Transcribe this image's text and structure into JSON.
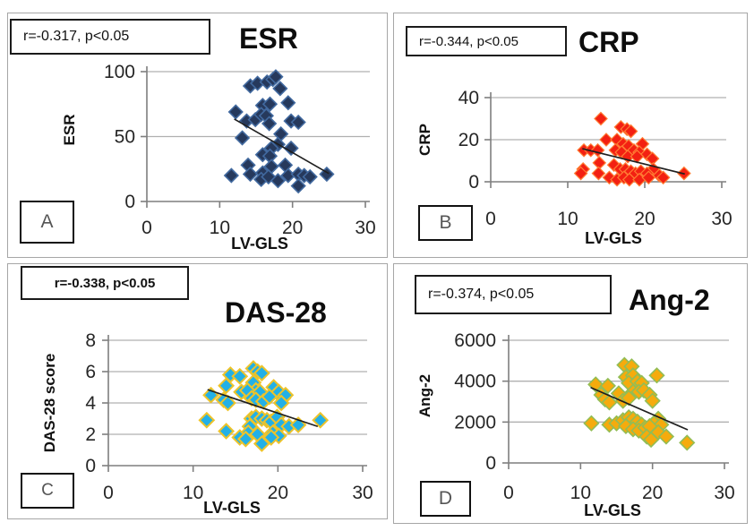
{
  "figure": {
    "xlabel_shared": "LV-GLS"
  },
  "chart_data": [
    {
      "type": "scatter",
      "panel_label": "A",
      "title": "ESR",
      "annotation": "r=-0.317, p<0.05",
      "xlabel": "LV-GLS",
      "ylabel": "ESR",
      "xlim": [
        0,
        30
      ],
      "ylim": [
        0,
        100
      ],
      "xticks": [
        0,
        10,
        20,
        30
      ],
      "yticks": [
        0,
        50,
        100
      ],
      "grid": "horizontal",
      "legend": "none",
      "marker": "diamond",
      "marker_fill": "#26395c",
      "marker_stroke": "#41699f",
      "trend_color": "#1f1f1f",
      "trend_line": {
        "x1": 12.0,
        "y1": 63.5,
        "x2": 25.0,
        "y2": 21.5
      },
      "points": [
        [
          14.2,
          89
        ],
        [
          15.2,
          91
        ],
        [
          16.5,
          92
        ],
        [
          17.3,
          94
        ],
        [
          17.7,
          96
        ],
        [
          18.3,
          87
        ],
        [
          12.2,
          69
        ],
        [
          15.9,
          74
        ],
        [
          16.9,
          75
        ],
        [
          19.4,
          76
        ],
        [
          13.7,
          62
        ],
        [
          14.9,
          63
        ],
        [
          15.7,
          67
        ],
        [
          16.4,
          66
        ],
        [
          16.8,
          60
        ],
        [
          19.8,
          62
        ],
        [
          20.8,
          61
        ],
        [
          13.1,
          49
        ],
        [
          18.4,
          52
        ],
        [
          18.0,
          44
        ],
        [
          17.1,
          41
        ],
        [
          19.8,
          41
        ],
        [
          15.9,
          36
        ],
        [
          16.9,
          35
        ],
        [
          13.9,
          28
        ],
        [
          17.1,
          27
        ],
        [
          19.0,
          28
        ],
        [
          11.6,
          20
        ],
        [
          14.2,
          21
        ],
        [
          15.9,
          22
        ],
        [
          15.7,
          17
        ],
        [
          16.7,
          19
        ],
        [
          18.0,
          16
        ],
        [
          19.4,
          20
        ],
        [
          20.8,
          21
        ],
        [
          21.6,
          20
        ],
        [
          22.4,
          19
        ],
        [
          20.8,
          12
        ],
        [
          24.7,
          21
        ]
      ]
    },
    {
      "type": "scatter",
      "panel_label": "B",
      "title": "CRP",
      "annotation": "r=-0.344, p<0.05",
      "xlabel": "LV-GLS",
      "ylabel": "CRP",
      "xlim": [
        0,
        30
      ],
      "ylim": [
        0,
        40
      ],
      "xticks": [
        0,
        10,
        20,
        30
      ],
      "yticks": [
        0,
        20,
        40
      ],
      "grid": "horizontal",
      "legend": "none",
      "marker": "diamond",
      "marker_fill": "#f32012",
      "marker_stroke": "#ff7c33",
      "trend_color": "#1f1f1f",
      "trend_line": {
        "x1": 11.9,
        "y1": 15.7,
        "x2": 25.2,
        "y2": 3.7
      },
      "points": [
        [
          14.3,
          30
        ],
        [
          16.9,
          26
        ],
        [
          17.7,
          25
        ],
        [
          18.2,
          24
        ],
        [
          15.0,
          20
        ],
        [
          16.4,
          20
        ],
        [
          17.2,
          18
        ],
        [
          17.9,
          17
        ],
        [
          19.7,
          18
        ],
        [
          12.1,
          15
        ],
        [
          13.0,
          15
        ],
        [
          13.9,
          15
        ],
        [
          16.2,
          15
        ],
        [
          17.0,
          14
        ],
        [
          18.6,
          15
        ],
        [
          19.3,
          14
        ],
        [
          20.3,
          13
        ],
        [
          17.8,
          12
        ],
        [
          19.0,
          12
        ],
        [
          21.0,
          11
        ],
        [
          14.1,
          9
        ],
        [
          16.0,
          8
        ],
        [
          12.0,
          6
        ],
        [
          16.8,
          6
        ],
        [
          17.5,
          6
        ],
        [
          21.1,
          6
        ],
        [
          11.7,
          4
        ],
        [
          14.0,
          4
        ],
        [
          18.2,
          5
        ],
        [
          18.8,
          4
        ],
        [
          19.5,
          5
        ],
        [
          20.3,
          4
        ],
        [
          21.9,
          3
        ],
        [
          25.1,
          4
        ],
        [
          15.4,
          2
        ],
        [
          16.4,
          1
        ],
        [
          17.3,
          2
        ],
        [
          18.0,
          1
        ],
        [
          19.3,
          1
        ],
        [
          20.5,
          2
        ],
        [
          22.4,
          2
        ]
      ]
    },
    {
      "type": "scatter",
      "panel_label": "C",
      "title": "DAS-28",
      "annotation": "r=-0.338, p<0.05",
      "xlabel": "LV-GLS",
      "ylabel": "DAS-28 score",
      "xlim": [
        0,
        30
      ],
      "ylim": [
        0,
        8
      ],
      "xticks": [
        0,
        10,
        20,
        30
      ],
      "yticks": [
        0,
        2,
        4,
        6,
        8
      ],
      "grid": "horizontal",
      "legend": "none",
      "marker": "diamond",
      "marker_fill": "#23b0e6",
      "marker_stroke": "#edc32a",
      "trend_color": "#1f1f1f",
      "trend_line": {
        "x1": 11.7,
        "y1": 4.85,
        "x2": 24.7,
        "y2": 2.5
      },
      "points": [
        [
          17.1,
          6.2
        ],
        [
          14.4,
          5.8
        ],
        [
          15.5,
          5.7
        ],
        [
          17.6,
          6.0
        ],
        [
          18.1,
          5.9
        ],
        [
          13.9,
          5.1
        ],
        [
          17.1,
          5.3
        ],
        [
          17.4,
          4.8
        ],
        [
          15.7,
          4.7
        ],
        [
          16.4,
          4.8
        ],
        [
          17.9,
          4.7
        ],
        [
          19.5,
          5.0
        ],
        [
          20.1,
          4.7
        ],
        [
          12.1,
          4.5
        ],
        [
          13.6,
          4.2
        ],
        [
          14.1,
          4.0
        ],
        [
          16.9,
          4.3
        ],
        [
          17.4,
          4.2
        ],
        [
          18.3,
          4.1
        ],
        [
          19.0,
          4.4
        ],
        [
          20.6,
          4.3
        ],
        [
          20.9,
          4.5
        ],
        [
          20.4,
          4.0
        ],
        [
          16.9,
          3.0
        ],
        [
          17.4,
          3.1
        ],
        [
          18.1,
          3.0
        ],
        [
          18.7,
          2.9
        ],
        [
          19.2,
          2.8
        ],
        [
          19.9,
          3.1
        ],
        [
          11.6,
          2.9
        ],
        [
          16.7,
          2.5
        ],
        [
          20.4,
          2.6
        ],
        [
          21.3,
          2.5
        ],
        [
          22.4,
          2.6
        ],
        [
          13.9,
          2.2
        ],
        [
          16.5,
          2.1
        ],
        [
          17.6,
          2.0
        ],
        [
          19.4,
          2.1
        ],
        [
          20.1,
          1.9
        ],
        [
          15.5,
          1.8
        ],
        [
          16.2,
          1.7
        ],
        [
          18.1,
          1.4
        ],
        [
          19.2,
          1.8
        ],
        [
          25.0,
          2.9
        ]
      ]
    },
    {
      "type": "scatter",
      "panel_label": "D",
      "title": "Ang-2",
      "annotation": "r=-0.374, p<0.05",
      "xlabel": "LV-GLS",
      "ylabel": "Ang-2",
      "xlim": [
        0,
        30
      ],
      "ylim": [
        0,
        6000
      ],
      "xticks": [
        0,
        10,
        20,
        30
      ],
      "yticks": [
        0,
        2000,
        4000,
        6000
      ],
      "grid": "horizontal",
      "legend": "none",
      "marker": "diamond",
      "marker_fill": "#f5ab0d",
      "marker_stroke": "#92bd55",
      "trend_color": "#1f1f1f",
      "trend_line": {
        "x1": 11.4,
        "y1": 3690,
        "x2": 24.9,
        "y2": 1620
      },
      "points": [
        [
          16.1,
          4790
        ],
        [
          17.1,
          4720
        ],
        [
          16.3,
          4200
        ],
        [
          17.3,
          4280
        ],
        [
          20.6,
          4280
        ],
        [
          16.7,
          3910
        ],
        [
          17.9,
          3990
        ],
        [
          18.5,
          3910
        ],
        [
          12.1,
          3840
        ],
        [
          13.8,
          3770
        ],
        [
          17.3,
          3480
        ],
        [
          18.1,
          3480
        ],
        [
          18.8,
          3550
        ],
        [
          15.3,
          3400
        ],
        [
          12.9,
          3330
        ],
        [
          19.6,
          3330
        ],
        [
          13.4,
          3110
        ],
        [
          14.0,
          2960
        ],
        [
          15.9,
          3040
        ],
        [
          20.0,
          3040
        ],
        [
          16.7,
          3180
        ],
        [
          11.5,
          1940
        ],
        [
          14.0,
          1870
        ],
        [
          15.0,
          1940
        ],
        [
          15.9,
          2090
        ],
        [
          16.7,
          2230
        ],
        [
          17.3,
          2160
        ],
        [
          17.9,
          2020
        ],
        [
          18.5,
          1870
        ],
        [
          20.8,
          2160
        ],
        [
          20.2,
          1940
        ],
        [
          21.2,
          1870
        ],
        [
          16.3,
          1800
        ],
        [
          17.3,
          1650
        ],
        [
          18.1,
          1580
        ],
        [
          19.0,
          1720
        ],
        [
          19.6,
          1800
        ],
        [
          19.2,
          1290
        ],
        [
          19.8,
          1140
        ],
        [
          20.8,
          1500
        ],
        [
          21.9,
          1290
        ],
        [
          24.8,
          990
        ]
      ]
    }
  ]
}
